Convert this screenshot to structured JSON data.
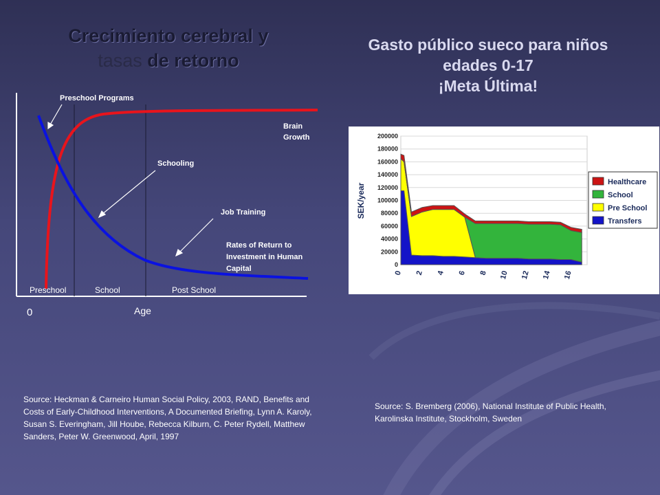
{
  "left_title": {
    "line1": "Crecimiento cerebral y",
    "line2a": "tasas",
    "line2b": "de retorno"
  },
  "right_title": {
    "line1": "Gasto público sueco para niños",
    "line2": "edades 0-17",
    "line3": "¡Meta Última!"
  },
  "left_source": "Source: Heckman & Carneiro Human Social Policy, 2003, RAND, Benefits and Costs of Early-Childhood Interventions, A Documented Briefing, Lynn A. Karoly, Susan S. Everingham, Jill Hoube, Rebecca Kilburn, C. Peter Rydell, Matthew Sanders, Peter W. Greenwood, April, 1997",
  "right_source": "Source: S. Bremberg (2006), National Institute of Public Health, Karolinska Institute, Stockholm, Sweden",
  "chart_data": [
    {
      "type": "line",
      "xlabel": "Age",
      "x_origin_label": "0",
      "stages": [
        "Preschool",
        "School",
        "Post School"
      ],
      "series": [
        {
          "name": "Brain Growth",
          "color": "#e8141c",
          "shape": "rises steeply then plateaus"
        },
        {
          "name": "Rates of Return to Investment in Human Capital",
          "color": "#0a12e0",
          "shape": "declines steeply then flattens"
        }
      ],
      "annotations": {
        "preschool_programs": "Preschool Programs",
        "schooling": "Schooling",
        "job_training": "Job Training",
        "brain_growth": [
          "Brain",
          "Growth"
        ],
        "rates_of_return": [
          "Rates of Return to",
          "Investment in Human",
          "Capital"
        ]
      },
      "grid": false
    },
    {
      "type": "area",
      "ylabel": "SEK/year",
      "ylim": [
        0,
        200000
      ],
      "yticks": [
        0,
        20000,
        40000,
        60000,
        80000,
        100000,
        120000,
        140000,
        160000,
        180000,
        200000
      ],
      "xticks": [
        0,
        2,
        4,
        6,
        8,
        10,
        12,
        14,
        16
      ],
      "x": [
        0,
        0.3,
        1,
        2,
        3,
        4,
        5,
        6,
        7,
        8,
        9,
        10,
        11,
        12,
        13,
        14,
        15,
        16,
        17
      ],
      "series": [
        {
          "name": "Transfers",
          "color": "#1414c8",
          "values": [
            115000,
            115000,
            15000,
            14000,
            14000,
            13000,
            13000,
            12000,
            11000,
            10000,
            10000,
            10000,
            10000,
            9000,
            9000,
            9000,
            8000,
            8000,
            4000
          ]
        },
        {
          "name": "Pre School",
          "color": "#ffff00",
          "values": [
            50000,
            45000,
            60000,
            68000,
            72000,
            73000,
            73000,
            62000,
            0,
            0,
            0,
            0,
            0,
            0,
            0,
            0,
            0,
            0,
            0
          ]
        },
        {
          "name": "School",
          "color": "#33b43c",
          "values": [
            0,
            0,
            0,
            0,
            0,
            0,
            0,
            0,
            53000,
            54000,
            54000,
            54000,
            54000,
            54000,
            54000,
            54000,
            54000,
            45000,
            46000
          ]
        },
        {
          "name": "Healthcare",
          "color": "#cc1414",
          "values": [
            7000,
            10000,
            7000,
            7000,
            6000,
            6000,
            6000,
            5000,
            4000,
            4000,
            4000,
            4000,
            4000,
            4000,
            4000,
            4000,
            4000,
            5000,
            5000
          ]
        }
      ],
      "legend": [
        "Healthcare",
        "School",
        "Pre School",
        "Transfers"
      ],
      "legend_position": "right"
    }
  ]
}
